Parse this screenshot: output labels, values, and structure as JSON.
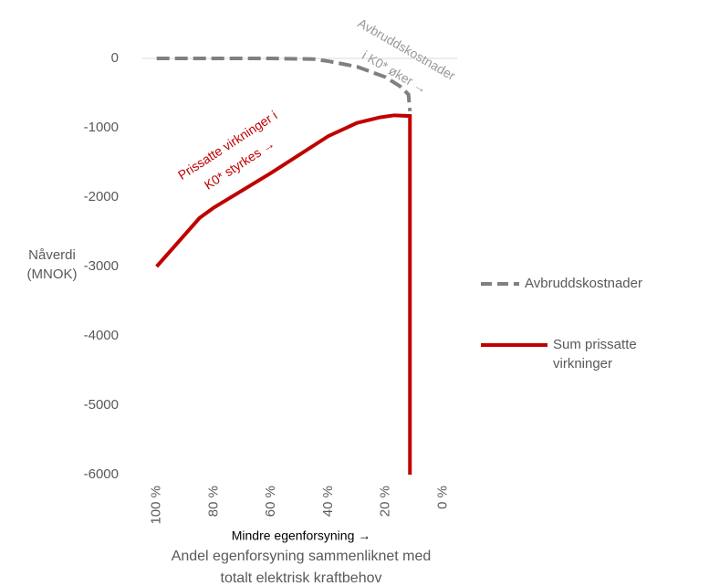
{
  "chart_data": {
    "type": "line",
    "y_label": [
      "Nåverdi",
      "(MNOK)"
    ],
    "x_label_note": "Mindre egenforsyning →",
    "x_label": [
      "Andel egenforsyning sammenliknet med",
      "totalt elektrisk kraftbehov"
    ],
    "xlim": [
      105,
      -5
    ],
    "ylim": [
      -6000,
      0
    ],
    "xticks": [
      {
        "value": 100,
        "label": "100 %"
      },
      {
        "value": 80,
        "label": "80 %"
      },
      {
        "value": 60,
        "label": "60 %"
      },
      {
        "value": 40,
        "label": "40 %"
      },
      {
        "value": 20,
        "label": "20 %"
      },
      {
        "value": 0,
        "label": "0 %"
      }
    ],
    "yticks": [
      0,
      -1000,
      -2000,
      -3000,
      -4000,
      -5000,
      -6000
    ],
    "series": [
      {
        "name": "Avbruddskostnader",
        "color": "#808080",
        "dash": true,
        "x": [
          100,
          80,
          60,
          45,
          40,
          30,
          20,
          15,
          12,
          11.5
        ],
        "values": [
          0,
          0,
          0,
          -10,
          -40,
          -120,
          -270,
          -400,
          -520,
          -760
        ]
      },
      {
        "name": "Sum prissatte virkninger",
        "color": "#c00000",
        "dash": false,
        "x": [
          100,
          85,
          80,
          60,
          40,
          30,
          22,
          17,
          11.5,
          11.5
        ],
        "values": [
          -3000,
          -2300,
          -2150,
          -1650,
          -1120,
          -930,
          -850,
          -820,
          -830,
          -6000
        ]
      }
    ],
    "annotations": [
      {
        "lines": [
          "Avbruddskostnader",
          "i K0* øker →"
        ],
        "color": "#999999"
      },
      {
        "lines": [
          "Prissatte virkninger i",
          "K0* styrkes →"
        ],
        "color": "#c00000"
      }
    ]
  }
}
